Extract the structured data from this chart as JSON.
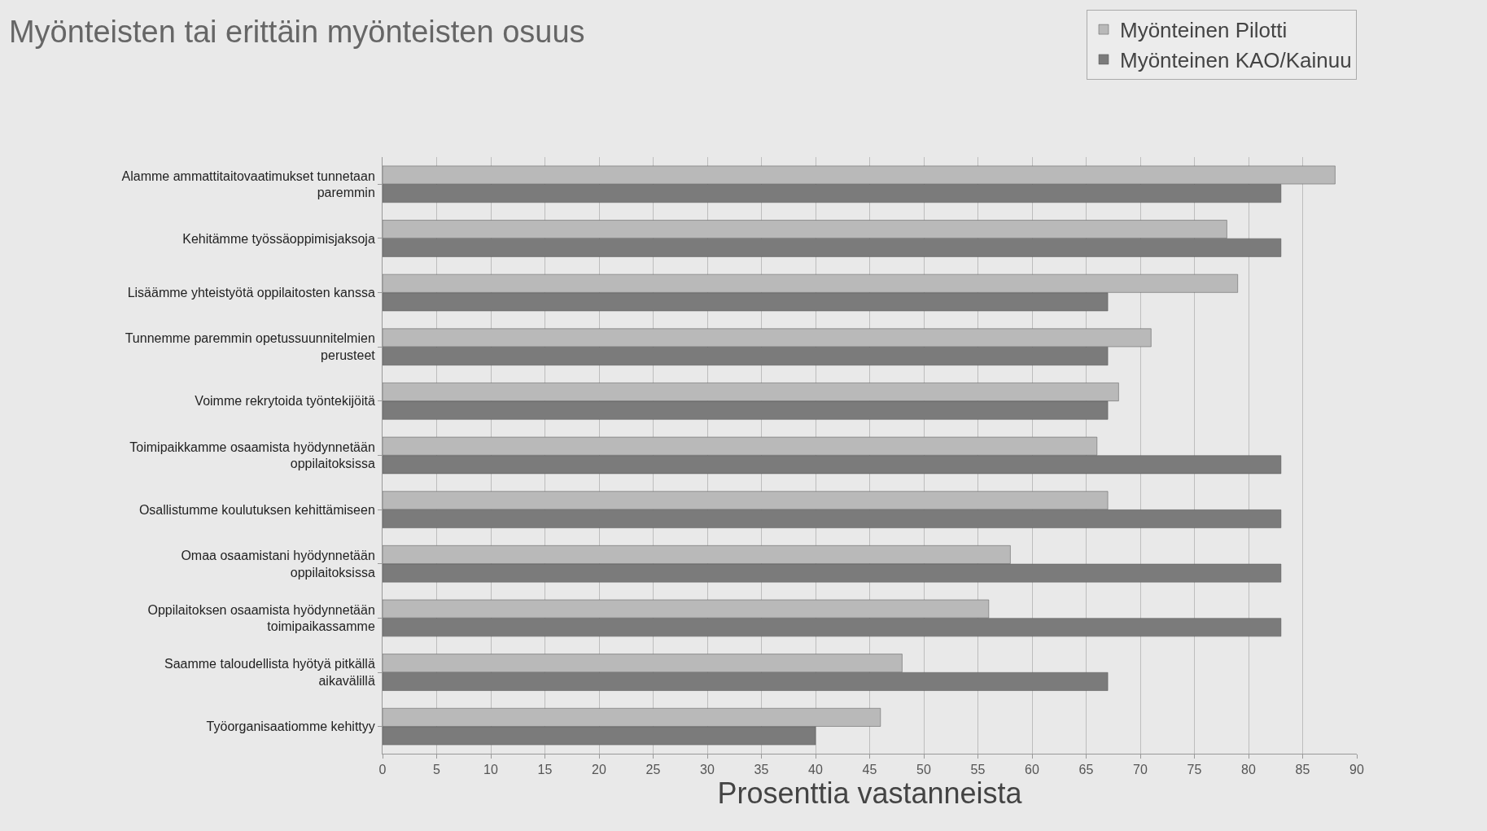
{
  "chart_data": {
    "type": "bar",
    "orientation": "horizontal",
    "title": "Myönteisten tai erittäin myönteisten osuus",
    "xlabel": "Prosenttia vastanneista",
    "categories": [
      "Alamme ammattitaitovaatimukset tunnetaan paremmin",
      "Kehitämme työssäoppimisjaksoja",
      "Lisäämme yhteistyötä oppilaitosten kanssa",
      "Tunnemme paremmin opetussuunnitelmien perusteet",
      "Voimme rekrytoida työntekijöitä",
      "Toimipaikkamme osaamista hyödynnetään oppilaitoksissa",
      "Osallistumme koulutuksen kehittämiseen",
      "Omaa osaamistani hyödynnetään oppilaitoksissa",
      "Oppilaitoksen osaamista hyödynnetään toimipaikassamme",
      "Saamme taloudellista hyötyä pitkällä aikavälillä",
      "Työorganisaatiomme kehittyy"
    ],
    "series": [
      {
        "name": "Myönteinen Pilotti",
        "color": "#b9b9b9",
        "values": [
          88,
          78,
          79,
          71,
          68,
          66,
          67,
          58,
          56,
          48,
          46
        ]
      },
      {
        "name": "Myönteinen KAO/Kainuu",
        "color": "#7b7b7b",
        "values": [
          83,
          83,
          67,
          67,
          67,
          83,
          83,
          83,
          83,
          67,
          40
        ]
      }
    ],
    "xlim": [
      0,
      90
    ],
    "xticks": [
      0,
      5,
      10,
      15,
      20,
      25,
      30,
      35,
      40,
      45,
      50,
      55,
      60,
      65,
      70,
      75,
      80,
      85,
      90
    ],
    "grid": "x",
    "legend": "top right"
  }
}
